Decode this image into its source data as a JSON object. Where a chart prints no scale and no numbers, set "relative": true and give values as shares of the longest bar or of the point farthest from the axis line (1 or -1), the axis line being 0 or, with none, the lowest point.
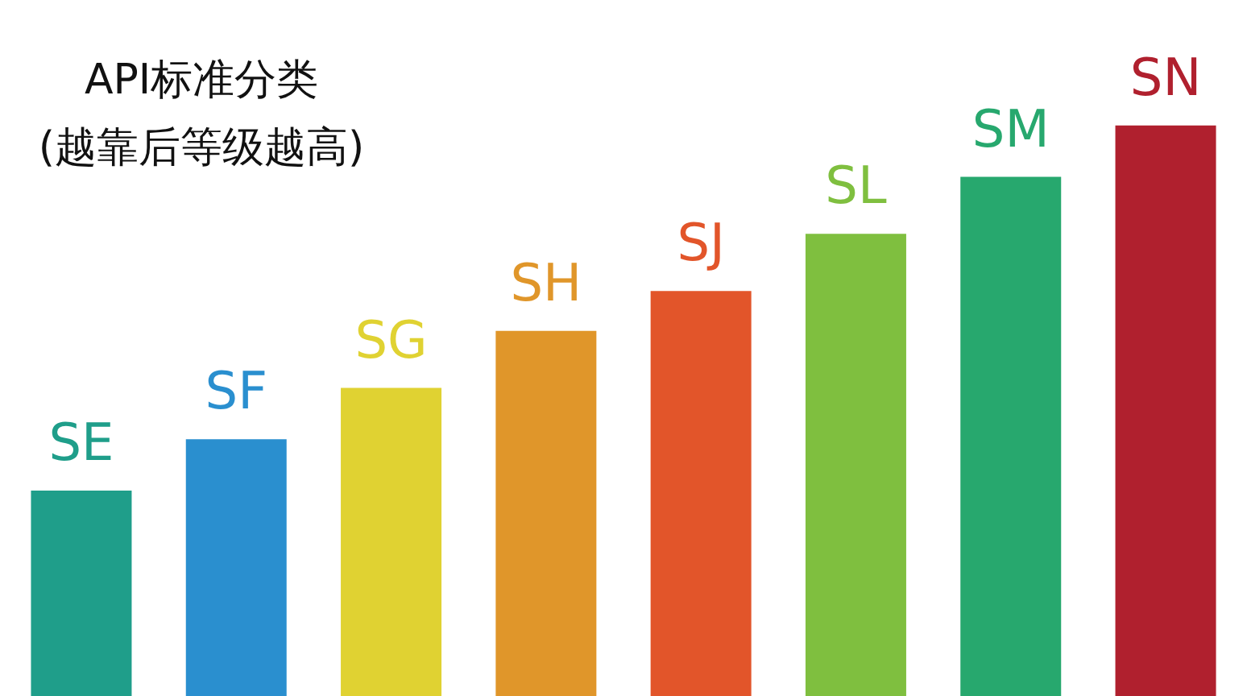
{
  "chart_data": {
    "type": "bar",
    "title": "API标准分类",
    "subtitle": "(越靠后等级越高)",
    "categories": [
      "SE",
      "SF",
      "SG",
      "SH",
      "SJ",
      "SL",
      "SM",
      "SN"
    ],
    "values": [
      0.36,
      0.45,
      0.54,
      0.64,
      0.71,
      0.81,
      0.91,
      1.0
    ],
    "colors": [
      "#1f9e8a",
      "#2a8fcf",
      "#e0d232",
      "#e0962a",
      "#e2552a",
      "#7fbf3f",
      "#27a86e",
      "#b0202e"
    ],
    "relative": true
  }
}
